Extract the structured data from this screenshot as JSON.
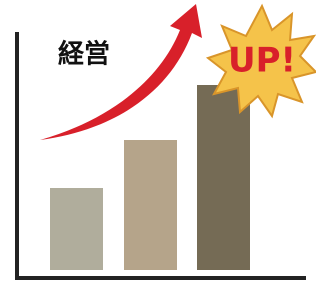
{
  "title": "経営",
  "badge": "UP!"
}
